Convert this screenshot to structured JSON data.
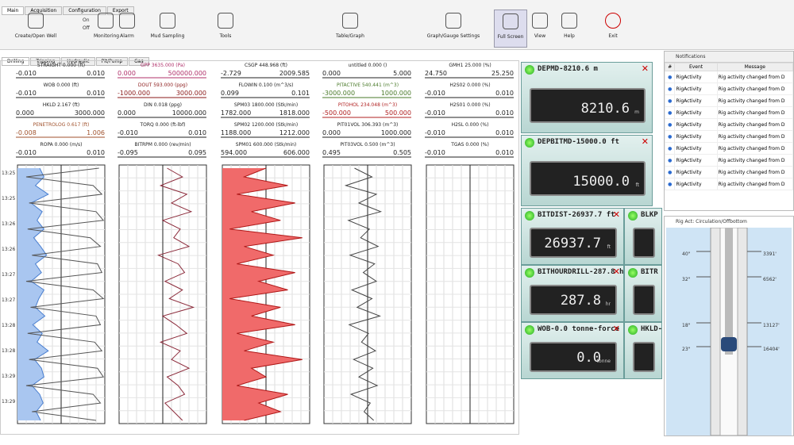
{
  "tabs": [
    "Main",
    "Acquisition",
    "Configuration",
    "Export"
  ],
  "toolbar": {
    "buttons": [
      "Create/Open Well",
      "Monitoring",
      "Alarm",
      "Mud Sampling",
      "Tools",
      "Table/Graph",
      "Graph/Gauge Settings",
      "Full Screen",
      "View",
      "Help",
      "Exit"
    ],
    "monitoring_options": [
      "On",
      "Off"
    ]
  },
  "sub_tabs": [
    "Drilling",
    "Tripping",
    "Hydraulic",
    "Pit/Pump",
    "Gas"
  ],
  "time_labels": [
    "13:25",
    "13:25",
    "13:26",
    "13:26",
    "13:27",
    "13:27",
    "13:28",
    "13:28",
    "13:29",
    "13:29"
  ],
  "tracks": [
    {
      "headers": [
        {
          "name": "STRAIGHT 0.000 (ft)",
          "min": "-0.010",
          "max": "0.010",
          "color": "#222222"
        },
        {
          "name": "WOB 0.000 (ft)",
          "min": "-0.010",
          "max": "0.010",
          "color": "#222222"
        },
        {
          "name": "HKLD 2.167 (ft)",
          "min": "0.000",
          "max": "3000.000",
          "color": "#222222"
        },
        {
          "name": "PENETROLOG 0.617 (ft)",
          "min": "-0.008",
          "max": "1.006",
          "color": "#a0522d"
        },
        {
          "name": "ROPA 0.000 (m/s)",
          "min": "-0.010",
          "max": "0.010",
          "color": "#222222"
        }
      ],
      "curves": [
        {
          "xlim": [
            -0.008,
            1.006
          ],
          "color": "#4a7fd0",
          "fill": "#a9c6f0",
          "values": [
            0.25,
            0.3,
            0.2,
            0.35,
            0.15,
            0.28,
            0.22,
            0.3,
            0.18,
            0.26,
            0.33,
            0.2,
            0.27,
            0.15,
            0.3,
            0.24,
            0.2,
            0.31,
            0.17,
            0.28,
            0.22,
            0.35,
            0.19,
            0.27,
            0.3,
            0.16,
            0.25,
            0.29,
            0.21,
            0.26
          ]
        },
        {
          "xlim": [
            0,
            3000
          ],
          "color": "#555555",
          "values": [
            2800,
            300,
            2600,
            2900,
            400,
            2700,
            2950,
            350,
            2500,
            2850,
            500,
            2750,
            2900,
            300,
            2600,
            2950,
            450,
            2700,
            2850,
            350,
            2650,
            2900,
            400,
            2750,
            2950,
            300,
            2600,
            2850,
            500,
            2700
          ]
        }
      ]
    },
    {
      "headers": [
        {
          "name": "GPP 3635.000 (Pa)",
          "min": "0.000",
          "max": "500000.000",
          "color": "#b0306a"
        },
        {
          "name": "DOUT 593.000 (ppg)",
          "min": "-1000.000",
          "max": "3000.000",
          "color": "#8b1a1a"
        },
        {
          "name": "DIN 0.018 (ppg)",
          "min": "0.000",
          "max": "10000.000",
          "color": "#222222"
        },
        {
          "name": "TORQ 0.000 (ft-lbf)",
          "min": "-0.010",
          "max": "0.010",
          "color": "#222222"
        },
        {
          "name": "BITRPM 0.000 (rev/min)",
          "min": "-0.095",
          "max": "0.095",
          "color": "#222222"
        }
      ],
      "curves": [
        {
          "xlim": [
            -1000,
            3000
          ],
          "color": "#8b2a3a",
          "values": [
            1200,
            1900,
            900,
            2100,
            1400,
            2300,
            1000,
            1800,
            1500,
            2200,
            800,
            1700,
            2000,
            1100,
            1900,
            1300,
            2400,
            1000,
            1600,
            2100,
            900,
            1800,
            1400,
            2200,
            1200,
            1700,
            2000,
            1100,
            1500,
            1900
          ]
        }
      ]
    },
    {
      "headers": [
        {
          "name": "CSGP 448.968 (ft)",
          "min": "-2.729",
          "max": "2009.585",
          "color": "#222222"
        },
        {
          "name": "FLOWIN 0.100 (m^3/s)",
          "min": "0.099",
          "max": "0.101",
          "color": "#222222"
        },
        {
          "name": "SPM03 1800.000 (Stk/min)",
          "min": "1782.000",
          "max": "1818.000",
          "color": "#222222"
        },
        {
          "name": "SPM02 1200.000 (Stk/min)",
          "min": "1188.000",
          "max": "1212.000",
          "color": "#222222"
        },
        {
          "name": "SPM01 600.000 (Stk/min)",
          "min": "594.000",
          "max": "606.000",
          "color": "#222222"
        }
      ],
      "curves": [
        {
          "xlim": [
            594,
            606
          ],
          "color": "#b01818",
          "fill": "#f06a6a",
          "values": [
            600,
            597,
            603,
            596,
            604,
            598,
            602,
            595,
            605,
            597,
            601,
            596,
            604,
            599,
            603,
            595,
            602,
            598,
            604,
            596,
            601,
            597,
            605,
            598,
            600,
            596,
            603,
            599,
            602,
            597
          ]
        }
      ]
    },
    {
      "headers": [
        {
          "name": "untitled 0.000 ()",
          "min": "0.000",
          "max": "5.000",
          "color": "#222222"
        },
        {
          "name": "PITACTIVE 540.441 (m^3)",
          "min": "-3000.000",
          "max": "1000.000",
          "color": "#4a7a2a"
        },
        {
          "name": "PITOHOL 234.048 (m^3)",
          "min": "-500.000",
          "max": "500.000",
          "color": "#b02020"
        },
        {
          "name": "PIT01VOL 306.393 (m^3)",
          "min": "0.000",
          "max": "1000.000",
          "color": "#222222"
        },
        {
          "name": "PIT03VOL 0.500 (m^3)",
          "min": "0.495",
          "max": "0.505",
          "color": "#222222"
        }
      ],
      "curves": [
        {
          "xlim": [
            0.495,
            0.505
          ],
          "color": "#444444",
          "values": [
            0.4985,
            0.5005,
            0.4975,
            0.501,
            0.499,
            0.5015,
            0.4978,
            0.5002,
            0.4992,
            0.5012,
            0.498,
            0.5008,
            0.4995,
            0.501,
            0.4982,
            0.5005,
            0.4988,
            0.5014,
            0.4979,
            0.5001,
            0.4993,
            0.5009,
            0.4984,
            0.5006,
            0.499,
            0.5011,
            0.4981,
            0.5003,
            0.4996,
            0.5007
          ]
        }
      ]
    },
    {
      "headers": [
        {
          "name": "GMH1 25.000 (%)",
          "min": "24.750",
          "max": "25.250",
          "color": "#222222"
        },
        {
          "name": "H2S02 0.000 (%)",
          "min": "-0.010",
          "max": "0.010",
          "color": "#222222"
        },
        {
          "name": "H2S01 0.000 (%)",
          "min": "-0.010",
          "max": "0.010",
          "color": "#222222"
        },
        {
          "name": "H2SL 0.000 (%)",
          "min": "-0.010",
          "max": "0.010",
          "color": "#222222"
        },
        {
          "name": "TGAS 0.000 (%)",
          "min": "-0.010",
          "max": "0.010",
          "color": "#222222"
        }
      ],
      "curves": []
    }
  ],
  "gauges": [
    {
      "title": "DEPMD-8210.6 m",
      "value": "8210.6",
      "unit": "m"
    },
    {
      "title": "DEPBITMD-15000.0 ft",
      "value": "15000.0",
      "unit": "ft"
    },
    {
      "title": "BITDIST-26937.7 ft",
      "value": "26937.7",
      "unit": "ft"
    },
    {
      "title": "BLKP"
    },
    {
      "title": "BITHOURDRILL-287.8 hr",
      "value": "287.8",
      "unit": "hr"
    },
    {
      "title": "BITR"
    },
    {
      "title": "WOB-0.0 tonne-force",
      "value": "0.0",
      "unit": "tonne"
    },
    {
      "title": "HKLD-"
    }
  ],
  "notifications": {
    "title": "Notifications",
    "columns": [
      "#",
      "Event",
      "Message"
    ],
    "rows": [
      [
        "RigActivity",
        "Rig activity changed from D"
      ],
      [
        "RigActivity",
        "Rig activity changed from D"
      ],
      [
        "RigActivity",
        "Rig activity changed from D"
      ],
      [
        "RigActivity",
        "Rig activity changed from D"
      ],
      [
        "RigActivity",
        "Rig activity changed from D"
      ],
      [
        "RigActivity",
        "Rig activity changed from D"
      ],
      [
        "RigActivity",
        "Rig activity changed from D"
      ],
      [
        "RigActivity",
        "Rig activity changed from D"
      ],
      [
        "RigActivity",
        "Rig activity changed from D"
      ],
      [
        "RigActivity",
        "Rig activity changed from D"
      ]
    ]
  },
  "rig_panel": {
    "title": "Rig Act: Circulation/Offbottom",
    "left_labels": [
      "40\"",
      "32\"",
      "18\"",
      "23\""
    ],
    "right_labels": [
      "3391'",
      "6562'",
      "13127'",
      "16404'"
    ]
  }
}
